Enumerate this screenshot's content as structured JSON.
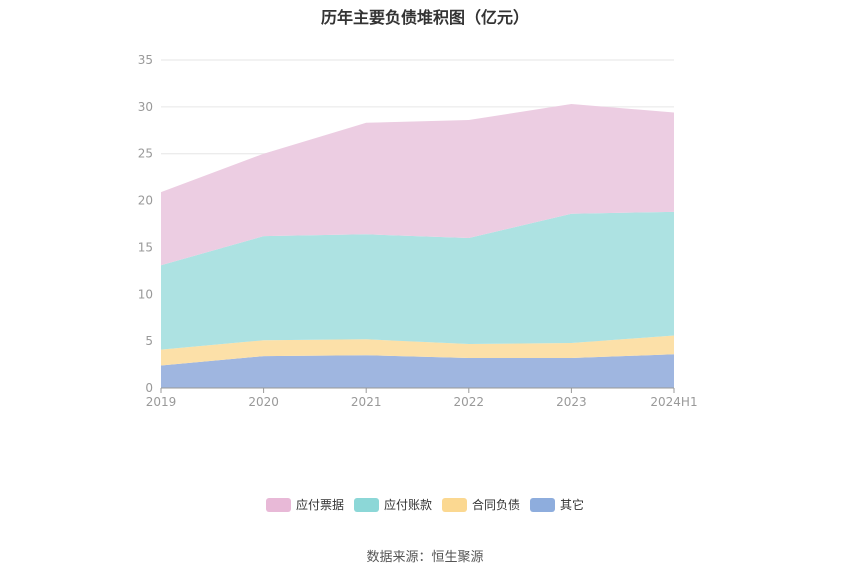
{
  "chart_data": {
    "type": "area",
    "title": "历年主要负债堆积图（亿元）",
    "categories": [
      "2019",
      "2020",
      "2021",
      "2022",
      "2023",
      "2024H1"
    ],
    "ylim": [
      0,
      35
    ],
    "yticks": [
      0,
      5,
      10,
      15,
      20,
      25,
      30,
      35
    ],
    "grid": true,
    "legend_position": "bottom",
    "stacked": true,
    "series": [
      {
        "name": "其它",
        "color": "#9fb6e0",
        "legend_color": "#8eaddd",
        "values": [
          2.4,
          3.4,
          3.5,
          3.2,
          3.2,
          3.6
        ]
      },
      {
        "name": "合同负债",
        "color": "#fce0a8",
        "legend_color": "#fbd891",
        "values": [
          1.7,
          1.7,
          1.7,
          1.5,
          1.6,
          2.0
        ]
      },
      {
        "name": "应付账款",
        "color": "#ade2e2",
        "legend_color": "#8cd7d7",
        "values": [
          9.0,
          11.1,
          11.2,
          11.3,
          13.8,
          13.2
        ]
      },
      {
        "name": "应付票据",
        "color": "#eccde2",
        "legend_color": "#e8b9d7",
        "values": [
          7.8,
          8.8,
          11.9,
          12.6,
          11.7,
          10.6
        ]
      }
    ],
    "legend_order": [
      "应付票据",
      "应付账款",
      "合同负债",
      "其它"
    ]
  },
  "footer": {
    "source": "数据来源：恒生聚源"
  }
}
